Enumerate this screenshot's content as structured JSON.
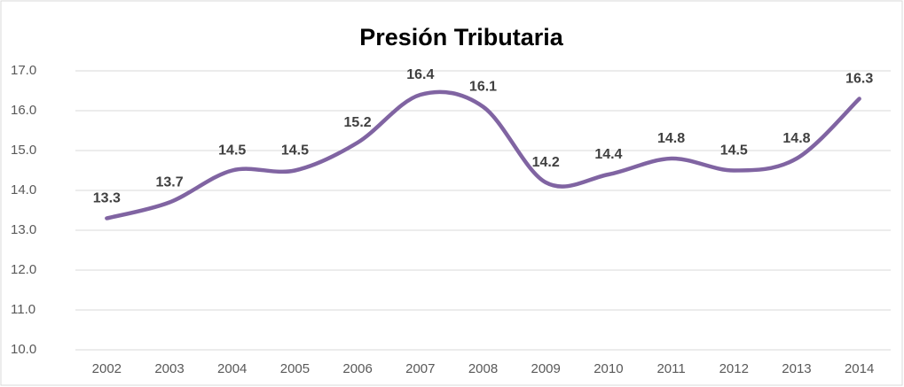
{
  "chart_data": {
    "type": "line",
    "title": "Presión Tributaria",
    "categories": [
      "2002",
      "2003",
      "2004",
      "2005",
      "2006",
      "2007",
      "2008",
      "2009",
      "2010",
      "2011",
      "2012",
      "2013",
      "2014"
    ],
    "values": [
      13.3,
      13.7,
      14.5,
      14.5,
      15.2,
      16.4,
      16.1,
      14.2,
      14.4,
      14.8,
      14.5,
      14.8,
      16.3
    ],
    "color": "#8064a2",
    "smooth": true,
    "grid": true,
    "ylim": [
      10,
      17
    ],
    "yticks": [
      {
        "value": 10,
        "label": "10.0"
      },
      {
        "value": 11,
        "label": "11.0"
      },
      {
        "value": 12,
        "label": "12.0"
      },
      {
        "value": 13,
        "label": "13.0"
      },
      {
        "value": 14,
        "label": "14.0"
      },
      {
        "value": 15,
        "label": "15.0"
      },
      {
        "value": 16,
        "label": "16.0"
      },
      {
        "value": 17,
        "label": "17.0"
      }
    ]
  }
}
